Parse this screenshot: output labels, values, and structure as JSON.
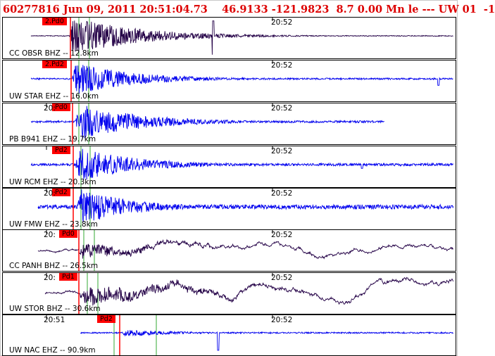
{
  "header": {
    "title": "60277816 Jun 09, 2011 20:51:04.73    46.9133 -121.9823  8.7 0.00 Mn le --- UW 01  -1"
  },
  "colors": {
    "title": "#dd0000",
    "trace_blue": "#0000ee",
    "trace_dark": "#230046",
    "pick_flag": "#ff0000",
    "pick_line_red": "#ff0000",
    "pick_line_green": "#33aa33",
    "tick": "#000000"
  },
  "panels": [
    {
      "label": "CC OBSR BHZ -- 12.8km",
      "pick": "2.Pd0",
      "time_left": "",
      "time_right": "20:52",
      "trace_color": "trace_dark"
    },
    {
      "label": "UW STAR EHZ -- 16.0km",
      "pick": "2.Pd2",
      "time_left": "",
      "time_right": "20:52",
      "trace_color": "trace_blue"
    },
    {
      "label": "PB B941 EHZ -- 19.7km",
      "pick": "Pd0",
      "time_left": "20:",
      "time_right": "20:52",
      "trace_color": "trace_blue"
    },
    {
      "label": "UW RCM EHZ -- 20.3km",
      "pick": "Pd2",
      "time_left": "",
      "time_right": "20:52",
      "trace_color": "trace_blue"
    },
    {
      "label": "UW FMW EHZ -- 23.8km",
      "pick": "Pd2",
      "time_left": "20:",
      "time_right": "20:52",
      "trace_color": "trace_blue"
    },
    {
      "label": "CC PANH BHZ -- 26.5km",
      "pick": "Pd0",
      "time_left": "20:",
      "time_right": "20:52",
      "trace_color": "trace_dark"
    },
    {
      "label": "UW STOR BHZ -- 30.6km",
      "pick": "Pd1",
      "time_left": "20:",
      "time_right": "20:52",
      "trace_color": "trace_dark"
    },
    {
      "label": "UW NAC EHZ -- 90.9km",
      "pick": "Pd2",
      "time_left": "20:51",
      "time_right": "20:52",
      "trace_color": "trace_blue"
    }
  ]
}
